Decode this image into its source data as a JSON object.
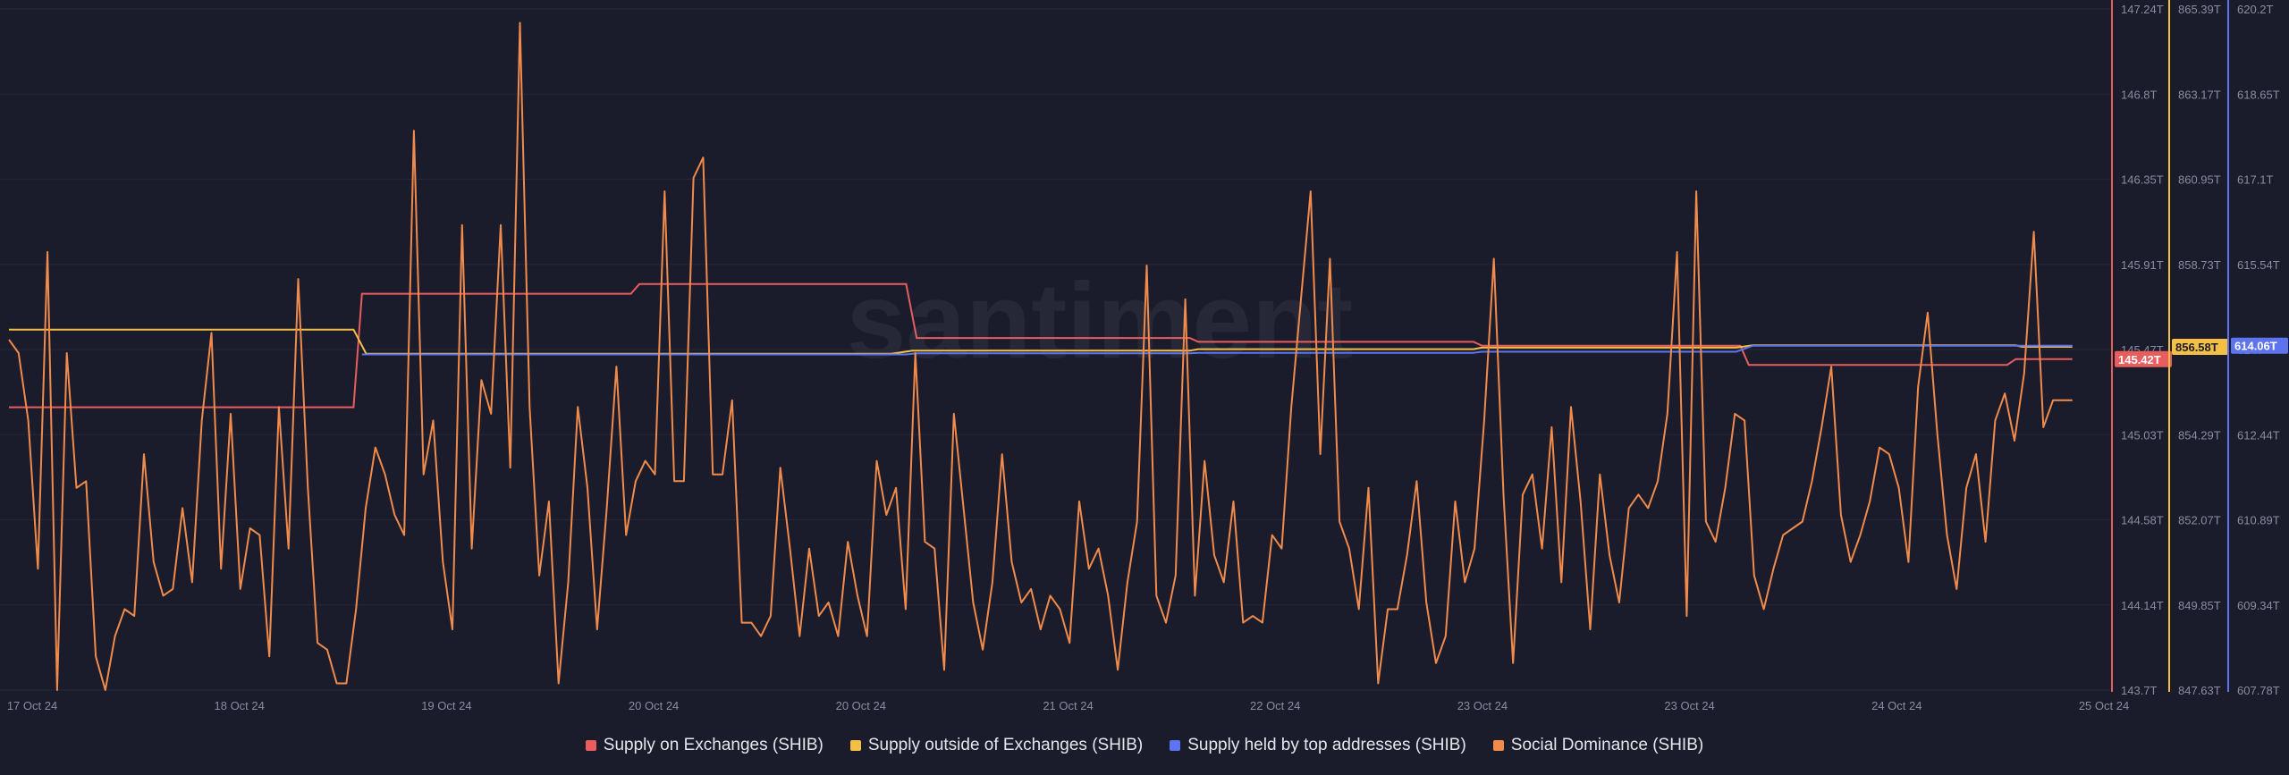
{
  "watermark": "santiment",
  "colors": {
    "background": "#1b1c2b",
    "supply_on_exchanges": "#e85d5d",
    "supply_outside_exchanges": "#f3c045",
    "supply_top_addresses": "#5d74ee",
    "social_dominance": "#f08b4c"
  },
  "legend": [
    {
      "label": "Supply on Exchanges (SHIB)",
      "color": "#e85d5d"
    },
    {
      "label": "Supply outside of Exchanges (SHIB)",
      "color": "#f3c045"
    },
    {
      "label": "Supply held by top addresses (SHIB)",
      "color": "#5d74ee"
    },
    {
      "label": "Social Dominance (SHIB)",
      "color": "#f08b4c"
    }
  ],
  "chart_data": {
    "type": "line",
    "grid": true,
    "x_ticks": [
      "17 Oct 24",
      "18 Oct 24",
      "19 Oct 24",
      "20 Oct 24",
      "20 Oct 24",
      "21 Oct 24",
      "22 Oct 24",
      "23 Oct 24",
      "23 Oct 24",
      "24 Oct 24",
      "25 Oct 24"
    ],
    "axes": {
      "supply_on_exchanges": {
        "ticks": [
          "147.24T",
          "146.8T",
          "146.35T",
          "145.91T",
          "145.47T",
          "145.03T",
          "144.58T",
          "144.14T",
          "143.7T"
        ],
        "range": [
          143.7,
          147.24
        ],
        "current": "145.42T"
      },
      "supply_outside_exchanges": {
        "ticks": [
          "865.39T",
          "863.17T",
          "860.95T",
          "858.73T",
          "856.51T",
          "854.29T",
          "852.07T",
          "849.85T",
          "847.63T"
        ],
        "range": [
          847.63,
          865.39
        ],
        "current": "856.58T"
      },
      "supply_top_addresses": {
        "ticks": [
          "620.2T",
          "618.65T",
          "617.1T",
          "615.54T",
          "614T",
          "612.44T",
          "610.89T",
          "609.34T",
          "607.78T"
        ],
        "range": [
          607.78,
          620.2
        ],
        "current": "614.06T"
      }
    },
    "series": [
      {
        "name": "Supply on Exchanges (SHIB)",
        "unit": "T",
        "points": [
          [
            0,
            145.17
          ],
          [
            0.164,
            145.17
          ],
          [
            0.168,
            145.76
          ],
          [
            0.296,
            145.76
          ],
          [
            0.3,
            145.81
          ],
          [
            0.427,
            145.81
          ],
          [
            0.432,
            145.53
          ],
          [
            0.562,
            145.53
          ],
          [
            0.566,
            145.51
          ],
          [
            0.697,
            145.51
          ],
          [
            0.701,
            145.49
          ],
          [
            0.824,
            145.49
          ],
          [
            0.828,
            145.39
          ],
          [
            0.951,
            145.39
          ],
          [
            0.955,
            145.42
          ],
          [
            0.982,
            145.42
          ]
        ]
      },
      {
        "name": "Supply outside of Exchanges (SHIB)",
        "unit": "T",
        "points": [
          [
            0,
            857.03
          ],
          [
            0.164,
            857.03
          ],
          [
            0.17,
            856.4
          ],
          [
            0.42,
            856.4
          ],
          [
            0.43,
            856.48
          ],
          [
            0.562,
            856.48
          ],
          [
            0.566,
            856.52
          ],
          [
            0.697,
            856.52
          ],
          [
            0.701,
            856.56
          ],
          [
            0.822,
            856.56
          ],
          [
            0.83,
            856.62
          ],
          [
            0.955,
            856.62
          ],
          [
            0.958,
            856.58
          ],
          [
            0.982,
            856.58
          ]
        ]
      },
      {
        "name": "Supply held by top addresses (SHIB)",
        "unit": "T",
        "points": [
          [
            0.168,
            613.9
          ],
          [
            0.427,
            613.9
          ],
          [
            0.432,
            613.92
          ],
          [
            0.562,
            613.92
          ],
          [
            0.566,
            613.93
          ],
          [
            0.697,
            613.93
          ],
          [
            0.701,
            613.95
          ],
          [
            0.822,
            613.95
          ],
          [
            0.83,
            614.06
          ],
          [
            0.955,
            614.06
          ],
          [
            0.958,
            614.06
          ],
          [
            0.982,
            614.06
          ]
        ]
      },
      {
        "name": "Social Dominance (SHIB)",
        "unit": "%",
        "scale": [
          0,
          1
        ],
        "values": [
          0.52,
          0.5,
          0.4,
          0.18,
          0.65,
          0,
          0.5,
          0.3,
          0.31,
          0.05,
          0,
          0.08,
          0.12,
          0.11,
          0.35,
          0.19,
          0.14,
          0.15,
          0.27,
          0.16,
          0.4,
          0.53,
          0.18,
          0.41,
          0.15,
          0.24,
          0.23,
          0.05,
          0.42,
          0.21,
          0.61,
          0.3,
          0.07,
          0.06,
          0.01,
          0.01,
          0.12,
          0.27,
          0.36,
          0.32,
          0.26,
          0.23,
          0.83,
          0.32,
          0.4,
          0.19,
          0.09,
          0.69,
          0.21,
          0.46,
          0.41,
          0.69,
          0.33,
          0.99,
          0.42,
          0.17,
          0.28,
          0.01,
          0.16,
          0.42,
          0.3,
          0.09,
          0.27,
          0.48,
          0.23,
          0.31,
          0.34,
          0.32,
          0.74,
          0.31,
          0.31,
          0.76,
          0.79,
          0.32,
          0.32,
          0.43,
          0.1,
          0.1,
          0.08,
          0.11,
          0.33,
          0.21,
          0.08,
          0.21,
          0.11,
          0.13,
          0.08,
          0.22,
          0.14,
          0.08,
          0.34,
          0.26,
          0.3,
          0.12,
          0.5,
          0.22,
          0.21,
          0.03,
          0.41,
          0.27,
          0.13,
          0.06,
          0.16,
          0.35,
          0.19,
          0.13,
          0.15,
          0.09,
          0.14,
          0.12,
          0.07,
          0.28,
          0.18,
          0.21,
          0.14,
          0.03,
          0.16,
          0.25,
          0.63,
          0.14,
          0.1,
          0.17,
          0.58,
          0.14,
          0.34,
          0.2,
          0.16,
          0.28,
          0.1,
          0.11,
          0.1,
          0.23,
          0.21,
          0.42,
          0.58,
          0.74,
          0.35,
          0.64,
          0.25,
          0.21,
          0.12,
          0.3,
          0.01,
          0.12,
          0.12,
          0.2,
          0.31,
          0.13,
          0.04,
          0.08,
          0.28,
          0.16,
          0.21,
          0.4,
          0.64,
          0.29,
          0.04,
          0.29,
          0.32,
          0.21,
          0.39,
          0.16,
          0.42,
          0.28,
          0.09,
          0.32,
          0.2,
          0.13,
          0.27,
          0.29,
          0.27,
          0.31,
          0.41,
          0.65,
          0.11,
          0.74,
          0.25,
          0.22,
          0.3,
          0.41,
          0.4,
          0.17,
          0.12,
          0.18,
          0.23,
          0.24,
          0.25,
          0.31,
          0.39,
          0.48,
          0.26,
          0.19,
          0.23,
          0.28,
          0.36,
          0.35,
          0.3,
          0.19,
          0.45,
          0.56,
          0.38,
          0.23,
          0.15,
          0.3,
          0.35,
          0.22,
          0.4,
          0.44,
          0.37,
          0.47,
          0.68,
          0.39,
          0.43,
          0.43,
          0.43
        ]
      }
    ]
  }
}
